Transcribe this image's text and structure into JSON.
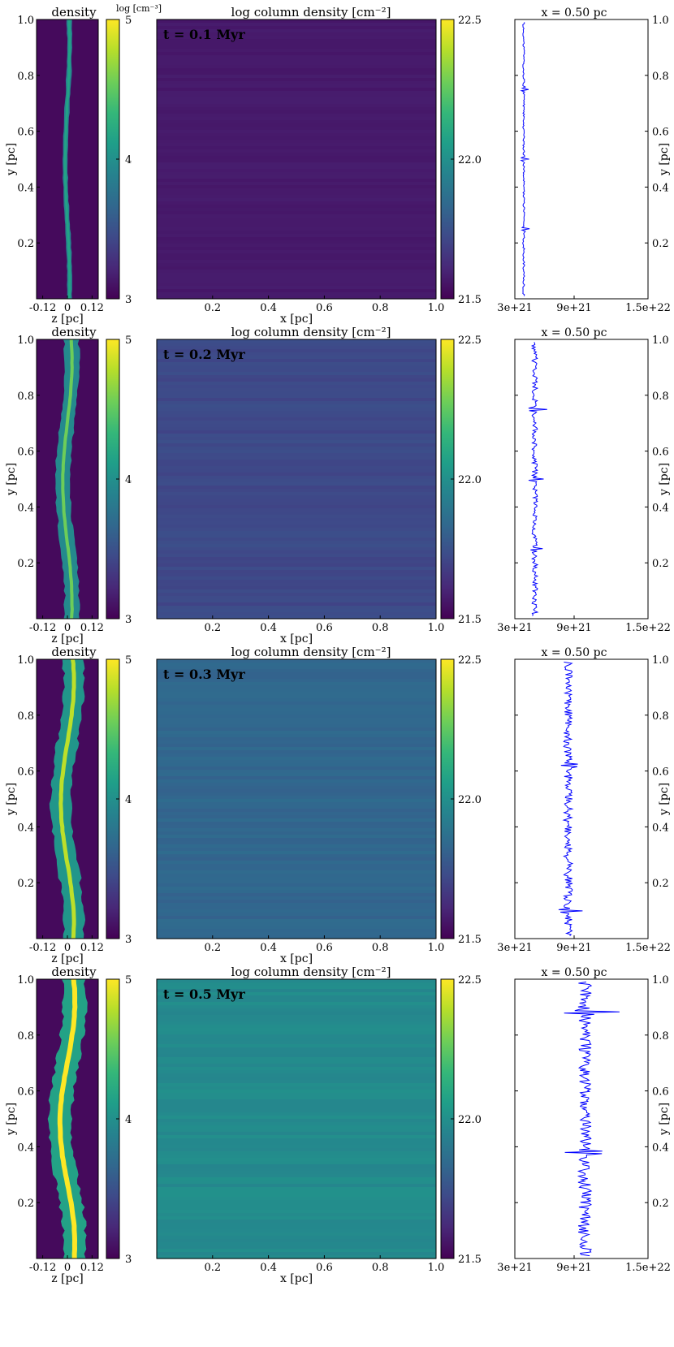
{
  "figure": {
    "colorbar_unit_label": "log [cm⁻³]"
  },
  "colors": {
    "viridis": [
      "#440154",
      "#482878",
      "#3e4a89",
      "#31688e",
      "#26828e",
      "#1f9e89",
      "#35b779",
      "#6ece58",
      "#b5de2b",
      "#fde725"
    ],
    "profile_line": "#0000ff"
  },
  "panels": {
    "density": {
      "title": "density",
      "xlabel": "z [pc]",
      "ylabel": "y [pc]",
      "xticks": [
        "-0.12",
        "0",
        "0.12"
      ],
      "yticks": [
        "0.2",
        "0.4",
        "0.6",
        "0.8",
        "1.0"
      ],
      "cbar_ticks": [
        "3",
        "4",
        "5"
      ]
    },
    "column": {
      "title": "log column density [cm⁻²]",
      "xlabel": "x [pc]",
      "xticks": [
        "0.2",
        "0.4",
        "0.6",
        "0.8",
        "1.0"
      ],
      "cbar_ticks": [
        "21.5",
        "22.0",
        "22.5"
      ]
    },
    "profile": {
      "title": "x = 0.50 pc",
      "ylabel": "y [pc]",
      "xticks": [
        "3e+21",
        "9e+21",
        "1.5e+22"
      ],
      "yticks": [
        "0.2",
        "0.4",
        "0.6",
        "0.8",
        "1.0"
      ]
    }
  },
  "chart_data": [
    {
      "type": "heatmap",
      "time_label": "t = 0.1 Myr",
      "density": {
        "xlim": [
          -0.15,
          0.15
        ],
        "ylim": [
          0,
          1
        ],
        "clim": [
          3,
          5
        ],
        "background": 3.05,
        "envelope_halfwidth": 0.012,
        "envelope_value": 3.9,
        "spine_value": 4.15,
        "spine_amplitude": 0.012
      },
      "column_density": {
        "xlim": [
          0,
          1
        ],
        "ylim": [
          0,
          1
        ],
        "clim": [
          21.5,
          22.5
        ],
        "mean_log_N": 21.57,
        "stripe_amplitude": 0.01
      },
      "profile": {
        "x_pc": 0.5,
        "xlim": [
          3e+21,
          1.5e+22
        ],
        "ylim": [
          0,
          1
        ],
        "mean": 3.8e+21,
        "noise": 8e+19,
        "spikes": [
          [
            0.25,
            5e+20
          ],
          [
            0.5,
            5e+20
          ],
          [
            0.75,
            5e+20
          ]
        ]
      }
    },
    {
      "type": "heatmap",
      "time_label": "t = 0.2 Myr",
      "density": {
        "xlim": [
          -0.15,
          0.15
        ],
        "ylim": [
          0,
          1
        ],
        "clim": [
          3,
          5
        ],
        "background": 3.05,
        "envelope_halfwidth": 0.035,
        "envelope_value": 3.95,
        "spine_value": 4.55,
        "spine_amplitude": 0.025
      },
      "column_density": {
        "xlim": [
          0,
          1
        ],
        "ylim": [
          0,
          1
        ],
        "clim": [
          21.5,
          22.5
        ],
        "mean_log_N": 21.72,
        "stripe_amplitude": 0.02
      },
      "profile": {
        "x_pc": 0.5,
        "xlim": [
          3e+21,
          1.5e+22
        ],
        "ylim": [
          0,
          1
        ],
        "mean": 4.8e+21,
        "noise": 2.5e+20,
        "spikes": [
          [
            0.25,
            9e+20
          ],
          [
            0.5,
            9e+20
          ],
          [
            0.75,
            9e+20
          ]
        ]
      }
    },
    {
      "type": "heatmap",
      "time_label": "t = 0.3 Myr",
      "density": {
        "xlim": [
          -0.15,
          0.15
        ],
        "ylim": [
          0,
          1
        ],
        "clim": [
          3,
          5
        ],
        "background": 3.05,
        "envelope_halfwidth": 0.05,
        "envelope_value": 4.05,
        "spine_value": 4.8,
        "spine_amplitude": 0.035
      },
      "column_density": {
        "xlim": [
          0,
          1
        ],
        "ylim": [
          0,
          1
        ],
        "clim": [
          21.5,
          22.5
        ],
        "mean_log_N": 21.83,
        "stripe_amplitude": 0.02
      },
      "profile": {
        "x_pc": 0.5,
        "xlim": [
          3e+21,
          1.5e+22
        ],
        "ylim": [
          0,
          1
        ],
        "mean": 7.8e+21,
        "noise": 4e+20,
        "spikes": [
          [
            0.1,
            1.2e+21
          ],
          [
            0.62,
            1.2e+21
          ]
        ]
      }
    },
    {
      "type": "heatmap",
      "time_label": "t = 0.5 Myr",
      "density": {
        "xlim": [
          -0.15,
          0.15
        ],
        "ylim": [
          0,
          1
        ],
        "clim": [
          3,
          5
        ],
        "background": 3.05,
        "envelope_halfwidth": 0.055,
        "envelope_value": 4.15,
        "spine_value": 5.0,
        "spine_amplitude": 0.04
      },
      "column_density": {
        "xlim": [
          0,
          1
        ],
        "ylim": [
          0,
          1
        ],
        "clim": [
          21.5,
          22.5
        ],
        "mean_log_N": 21.98,
        "stripe_amplitude": 0.025
      },
      "profile": {
        "x_pc": 0.5,
        "xlim": [
          3e+21,
          1.5e+22
        ],
        "ylim": [
          0,
          1
        ],
        "mean": 9.3e+21,
        "noise": 6e+20,
        "spikes": [
          [
            0.88,
            3.5e+21
          ],
          [
            0.38,
            3.2e+21
          ]
        ]
      }
    }
  ]
}
